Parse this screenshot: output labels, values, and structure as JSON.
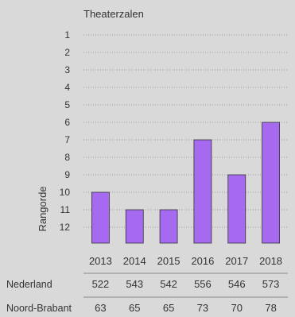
{
  "chart_data": {
    "type": "bar",
    "title": "Theaterzalen",
    "ylabel": "Rangorde",
    "xlabel": "",
    "y_inverted": true,
    "ylim": [
      1,
      12
    ],
    "y_ticks": [
      "1",
      "2",
      "3",
      "4",
      "5",
      "6",
      "7",
      "8",
      "9",
      "10",
      "11",
      "12"
    ],
    "grid": "horizontal-dotted",
    "categories": [
      "2013",
      "2014",
      "2015",
      "2016",
      "2017",
      "2018"
    ],
    "values": [
      10,
      11,
      11,
      7,
      9,
      6
    ],
    "bar_color": "#a66af0",
    "table": {
      "rows": [
        {
          "label": "Nederland",
          "values": [
            "522",
            "543",
            "542",
            "556",
            "546",
            "573"
          ]
        },
        {
          "label": "Noord-Brabant",
          "values": [
            "63",
            "65",
            "65",
            "73",
            "70",
            "78"
          ]
        }
      ]
    }
  },
  "colors": {
    "background": "#d9d9d9",
    "text": "#333333",
    "bar": "#a66af0",
    "grid": "#9a9a9a",
    "rule": "#8a8a8a"
  }
}
